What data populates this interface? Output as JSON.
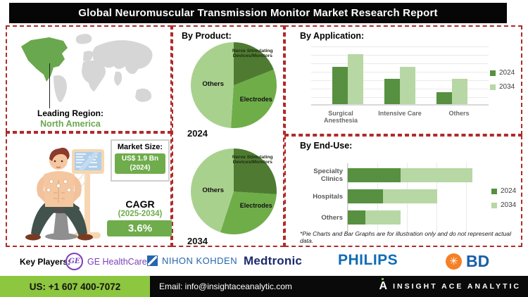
{
  "banner": {
    "title": "Global Neuromuscular Transmission Monitor Market Research Report"
  },
  "map_section": {
    "label": "Leading Region:",
    "region": "North America"
  },
  "market_section": {
    "market_size_label": "Market Size:",
    "market_size_value": "US$ 1.9 Bn",
    "market_size_year": "(2024)",
    "cagr_label": "CAGR",
    "cagr_period": "(2025-2034)",
    "cagr_value": "3.6%"
  },
  "by_product": {
    "heading": "By Product:"
  },
  "by_application": {
    "heading": "By Application:"
  },
  "by_end_use": {
    "heading": "By End-Use:",
    "footnote": "*Pie Charts and Bar Graphs are for illustration only and do not represent actual data."
  },
  "key_players": {
    "label": "Key Players:",
    "ge_monogram": "GE",
    "companies": [
      "GE HealthCare",
      "NIHON KOHDEN",
      "Medtronic",
      "PHILIPS",
      "BD"
    ],
    "bd_burst_glyph": "✳"
  },
  "footer": {
    "phone": "US: +1 607 400-7072",
    "email": "Email: info@insightaceanalytic.com",
    "brand_initial": "A",
    "brand": "INSIGHT ACE ANALYTIC"
  },
  "palette": {
    "accent_green_dark": "#4e7b31",
    "accent_green_mid": "#6fad49",
    "accent_green_light": "#a9d18e",
    "footer_green": "#8dc63f",
    "dashed_border_red": "#b02a2a",
    "banner_black": "#060606"
  },
  "chart_data": [
    {
      "type": "pie",
      "title": "2024",
      "labels": [
        "Nerve Stimulating Devices/Monitors",
        "Electrodes",
        "Others"
      ],
      "values": [
        19,
        32,
        49
      ],
      "colors": [
        "#4e7b31",
        "#6fad49",
        "#a9d18e"
      ],
      "note": "illustrative only"
    },
    {
      "type": "pie",
      "title": "2034",
      "labels": [
        "Nerve Stimulating Devices/Monitors",
        "Electrodes",
        "Others"
      ],
      "values": [
        26,
        29,
        45
      ],
      "colors": [
        "#4e7b31",
        "#6fad49",
        "#a9d18e"
      ],
      "note": "illustrative only"
    },
    {
      "type": "bar",
      "title": "By Application:",
      "categories": [
        "Surgical Anesthesia",
        "Intensive Care",
        "Others"
      ],
      "series": [
        {
          "name": "2024",
          "color": "#569040",
          "values": [
            65,
            44,
            21
          ]
        },
        {
          "name": "2034",
          "color": "#b7d7a4",
          "values": [
            87,
            65,
            44
          ]
        }
      ],
      "ylim": [
        0,
        100
      ],
      "grid": "horizontal",
      "legend_position": "right",
      "note": "illustrative only, axis unlabeled"
    },
    {
      "type": "bar-horizontal-stacked",
      "title": "By End-Use:",
      "categories": [
        "Specialty Clinics",
        "Hospitals",
        "Others"
      ],
      "series": [
        {
          "name": "2024",
          "color": "#569040",
          "values": [
            36,
            24,
            12
          ]
        },
        {
          "name": "2034",
          "color": "#b7d7a4",
          "values": [
            49,
            37,
            24
          ]
        }
      ],
      "xlim": [
        0,
        100
      ],
      "grid": "vertical",
      "legend_position": "right",
      "note": "illustrative only, axis unlabeled"
    }
  ]
}
